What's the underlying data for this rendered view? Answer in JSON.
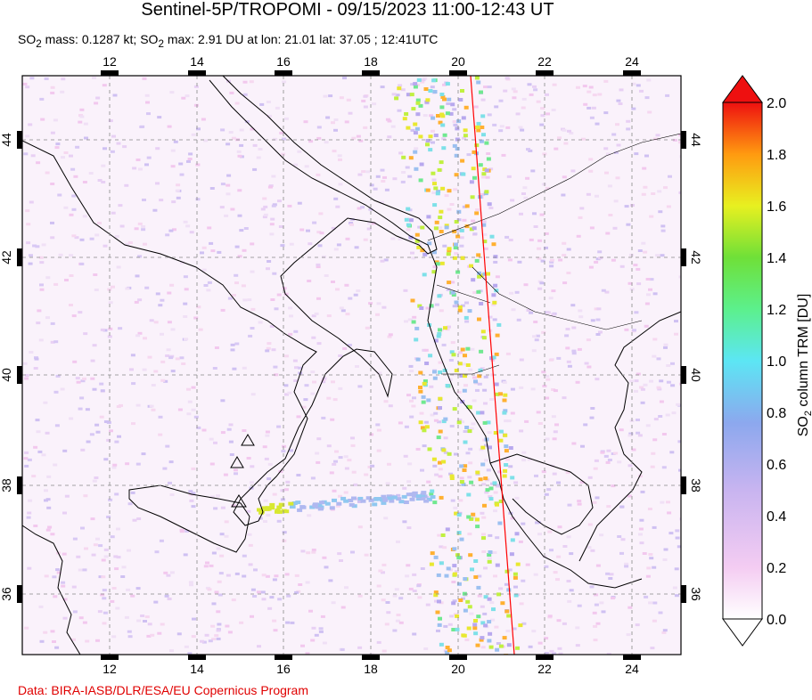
{
  "title": "Sentinel-5P/TROPOMI - 09/15/2023 11:00-12:43 UT",
  "subtitle": {
    "mass_prefix": "SO",
    "mass_sub": "2",
    "mass_text": " mass: 0.1287 kt; SO",
    "max_sub": "2",
    "max_text": " max: 2.91 DU at lon: 21.01 lat: 37.05 ; 12:41UTC"
  },
  "credit": "Data: BIRA-IASB/DLR/ESA/EU Copernicus Program",
  "map": {
    "lon_ticks": [
      "12",
      "14",
      "16",
      "18",
      "20",
      "22",
      "24"
    ],
    "lat_ticks": [
      "44",
      "42",
      "40",
      "38",
      "36"
    ],
    "volcanoes": [
      "Stromboli",
      "Vulcano",
      "Etna"
    ],
    "colors": {
      "land_outline": "#000000",
      "orbit_edge": "#ff0000",
      "grid": "#888888"
    }
  },
  "colorbar": {
    "ticks": [
      "2.0",
      "1.8",
      "1.6",
      "1.4",
      "1.2",
      "1.0",
      "0.8",
      "0.6",
      "0.4",
      "0.2",
      "0.0"
    ],
    "label_prefix": "SO",
    "label_sub": "2",
    "label_suffix": " column TRM [DU]",
    "range": [
      0.0,
      2.0
    ]
  }
}
